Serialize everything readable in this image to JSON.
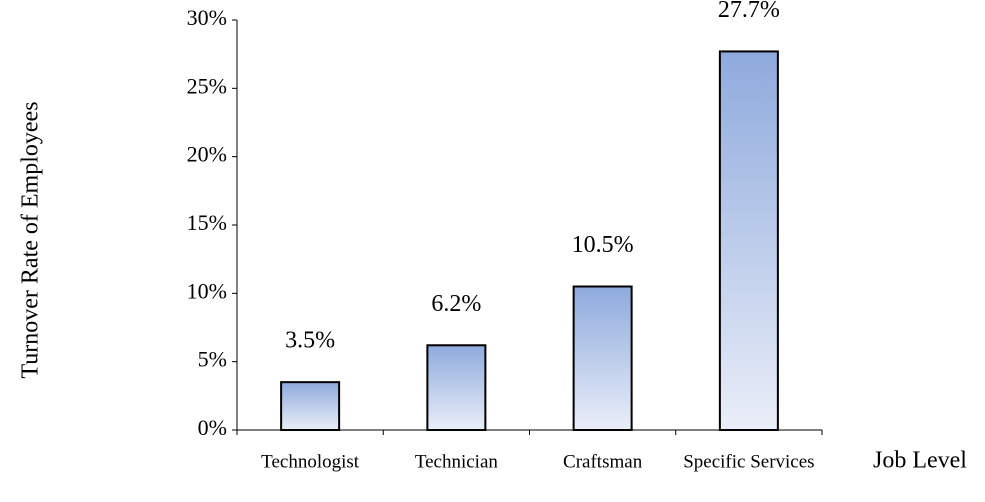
{
  "chart_data": {
    "type": "bar",
    "y_label": "Turnover Rate of Employees",
    "x_label": "Job Level",
    "categories": [
      "Technologist",
      "Technician",
      "Craftsman",
      "Specific Services"
    ],
    "values": [
      3.5,
      6.2,
      10.5,
      27.7
    ],
    "value_labels": [
      "3.5%",
      "6.2%",
      "10.5%",
      "27.7%"
    ],
    "color": "#8eaadd",
    "ylim": [
      0,
      30
    ],
    "yticks": [
      {
        "value": 0,
        "label": "0%"
      },
      {
        "value": 5,
        "label": "5%"
      },
      {
        "value": 10,
        "label": "10%"
      },
      {
        "value": 15,
        "label": "15%"
      },
      {
        "value": 20,
        "label": "20%"
      },
      {
        "value": 25,
        "label": "25%"
      },
      {
        "value": 30,
        "label": "30%"
      }
    ],
    "grid": false
  }
}
